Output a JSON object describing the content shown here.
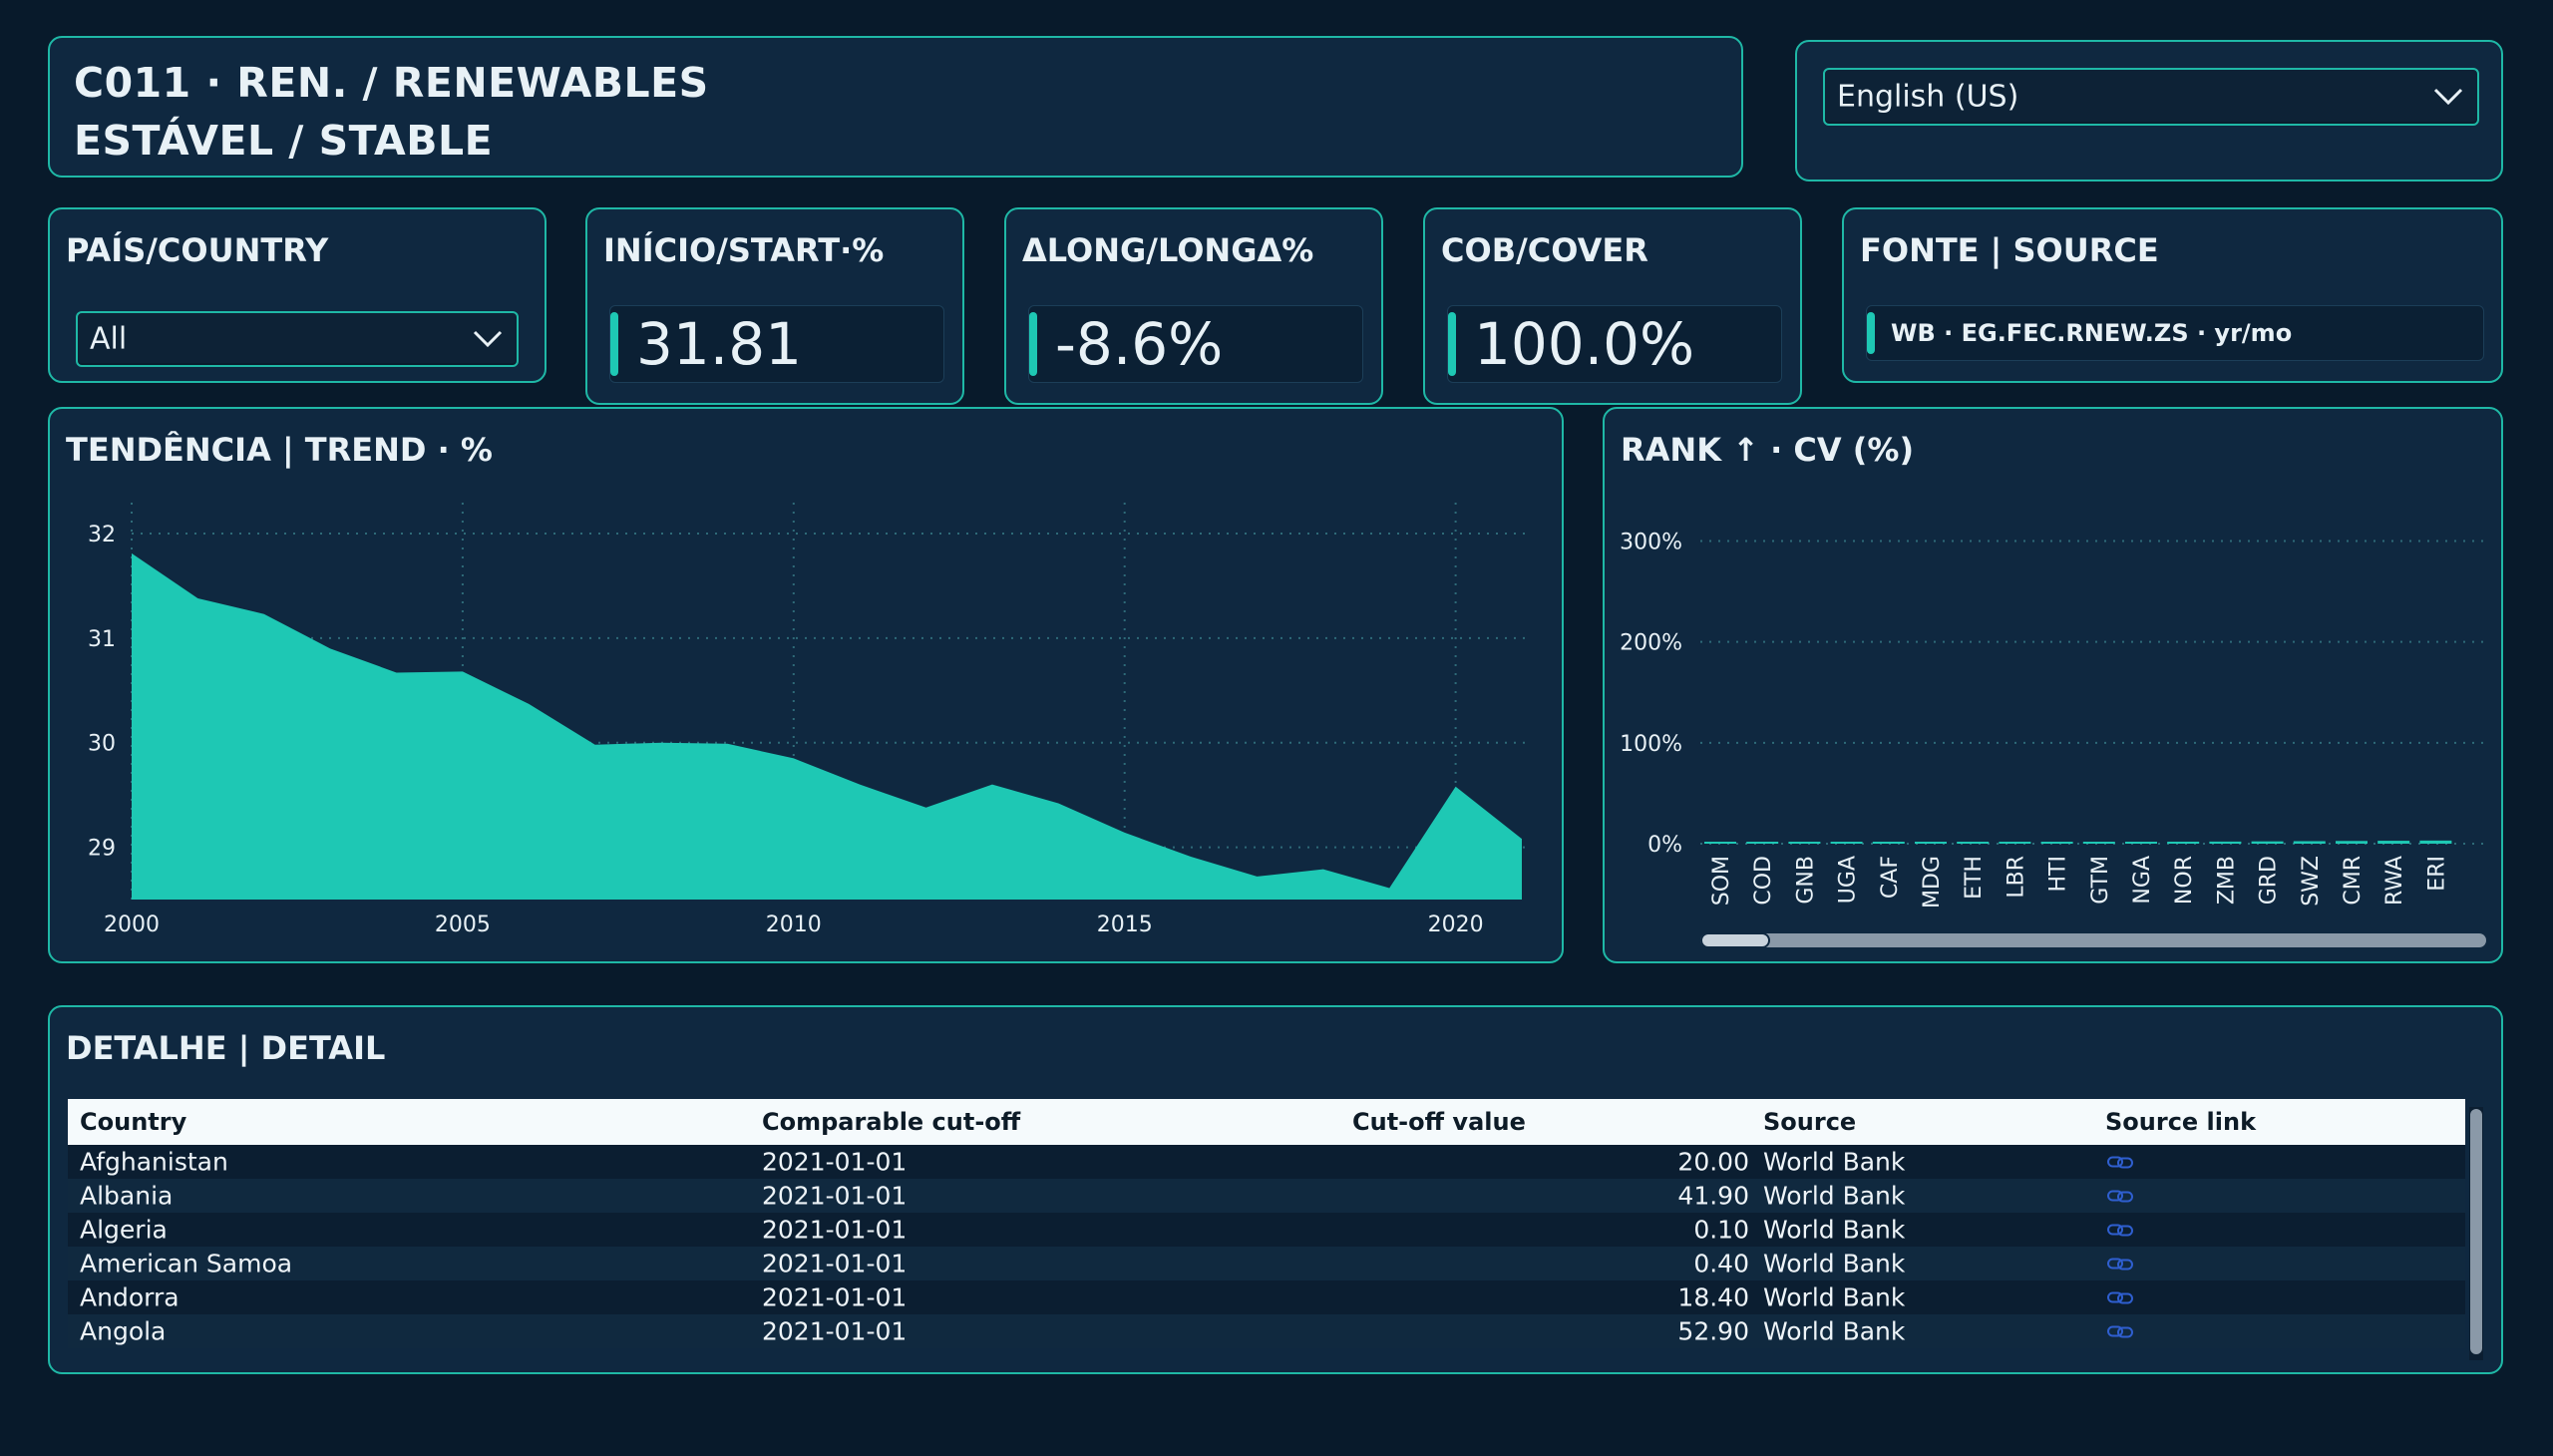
{
  "header": {
    "title_line1": "C011 · REN. / RENEWABLES",
    "title_line2": "ESTÁVEL / STABLE"
  },
  "language": {
    "selected": "English (US)"
  },
  "country_filter": {
    "label": "PAÍS/COUNTRY",
    "selected": "All"
  },
  "kpis": [
    {
      "label": "INÍCIO/START·%",
      "value": "31.81"
    },
    {
      "label": "ΔLONG/LONGΔ%",
      "value": "-8.6%"
    },
    {
      "label": "COB/COVER",
      "value": "100.0%"
    }
  ],
  "source_card": {
    "label": "FONTE | SOURCE",
    "value": "WB · EG.FEC.RNEW.ZS · yr/mo"
  },
  "colors": {
    "accent": "#1ec8b4",
    "border": "#1fb8a6",
    "card_bg": "#0f2840",
    "page_bg": "#081a2b"
  },
  "trend": {
    "title": "TENDÊNCIA | TREND · %",
    "y_ticks": [
      "32",
      "31",
      "30",
      "29"
    ],
    "x_ticks": [
      "2000",
      "2005",
      "2010",
      "2015",
      "2020"
    ]
  },
  "rank": {
    "title": "RANK ↑ · CV (%)",
    "y_ticks": [
      "300%",
      "200%",
      "100%",
      "0%"
    ]
  },
  "chart_data": [
    {
      "type": "area",
      "title": "TENDÊNCIA | TREND · %",
      "x": [
        2000,
        2001,
        2002,
        2003,
        2004,
        2005,
        2006,
        2007,
        2008,
        2009,
        2010,
        2011,
        2012,
        2013,
        2014,
        2015,
        2016,
        2017,
        2018,
        2019,
        2020,
        2021
      ],
      "values": [
        31.81,
        31.38,
        31.23,
        30.9,
        30.67,
        30.68,
        30.37,
        29.98,
        30.0,
        29.99,
        29.85,
        29.6,
        29.38,
        29.6,
        29.42,
        29.14,
        28.91,
        28.72,
        28.79,
        28.61,
        29.58,
        29.08
      ],
      "xlim": [
        2000,
        2021
      ],
      "ylim": [
        28.5,
        32.2
      ],
      "grid": true
    },
    {
      "type": "bar",
      "title": "RANK ↑ · CV (%)",
      "categories": [
        "SOM",
        "COD",
        "GNB",
        "UGA",
        "CAF",
        "MDG",
        "ETH",
        "LBR",
        "HTI",
        "GTM",
        "NGA",
        "NOR",
        "ZMB",
        "GRD",
        "SWZ",
        "CMR",
        "RWA",
        "ERI"
      ],
      "values": [
        0.7,
        0.8,
        1.0,
        1.1,
        1.2,
        1.3,
        1.4,
        1.5,
        1.6,
        1.7,
        1.8,
        2.0,
        2.1,
        2.3,
        2.5,
        2.7,
        2.9,
        3.1
      ],
      "ylim": [
        0,
        340
      ],
      "grid": true
    }
  ],
  "detail": {
    "title": "DETALHE | DETAIL",
    "columns": [
      "Country",
      "Comparable cut-off",
      "Cut-off value",
      "Source",
      "Source link"
    ],
    "rows": [
      {
        "country": "Afghanistan",
        "cutoff": "2021-01-01",
        "value": "20.00",
        "source": "World Bank"
      },
      {
        "country": "Albania",
        "cutoff": "2021-01-01",
        "value": "41.90",
        "source": "World Bank"
      },
      {
        "country": "Algeria",
        "cutoff": "2021-01-01",
        "value": "0.10",
        "source": "World Bank"
      },
      {
        "country": "American Samoa",
        "cutoff": "2021-01-01",
        "value": "0.40",
        "source": "World Bank"
      },
      {
        "country": "Andorra",
        "cutoff": "2021-01-01",
        "value": "18.40",
        "source": "World Bank"
      },
      {
        "country": "Angola",
        "cutoff": "2021-01-01",
        "value": "52.90",
        "source": "World Bank"
      }
    ],
    "link_icon": "link-icon"
  }
}
